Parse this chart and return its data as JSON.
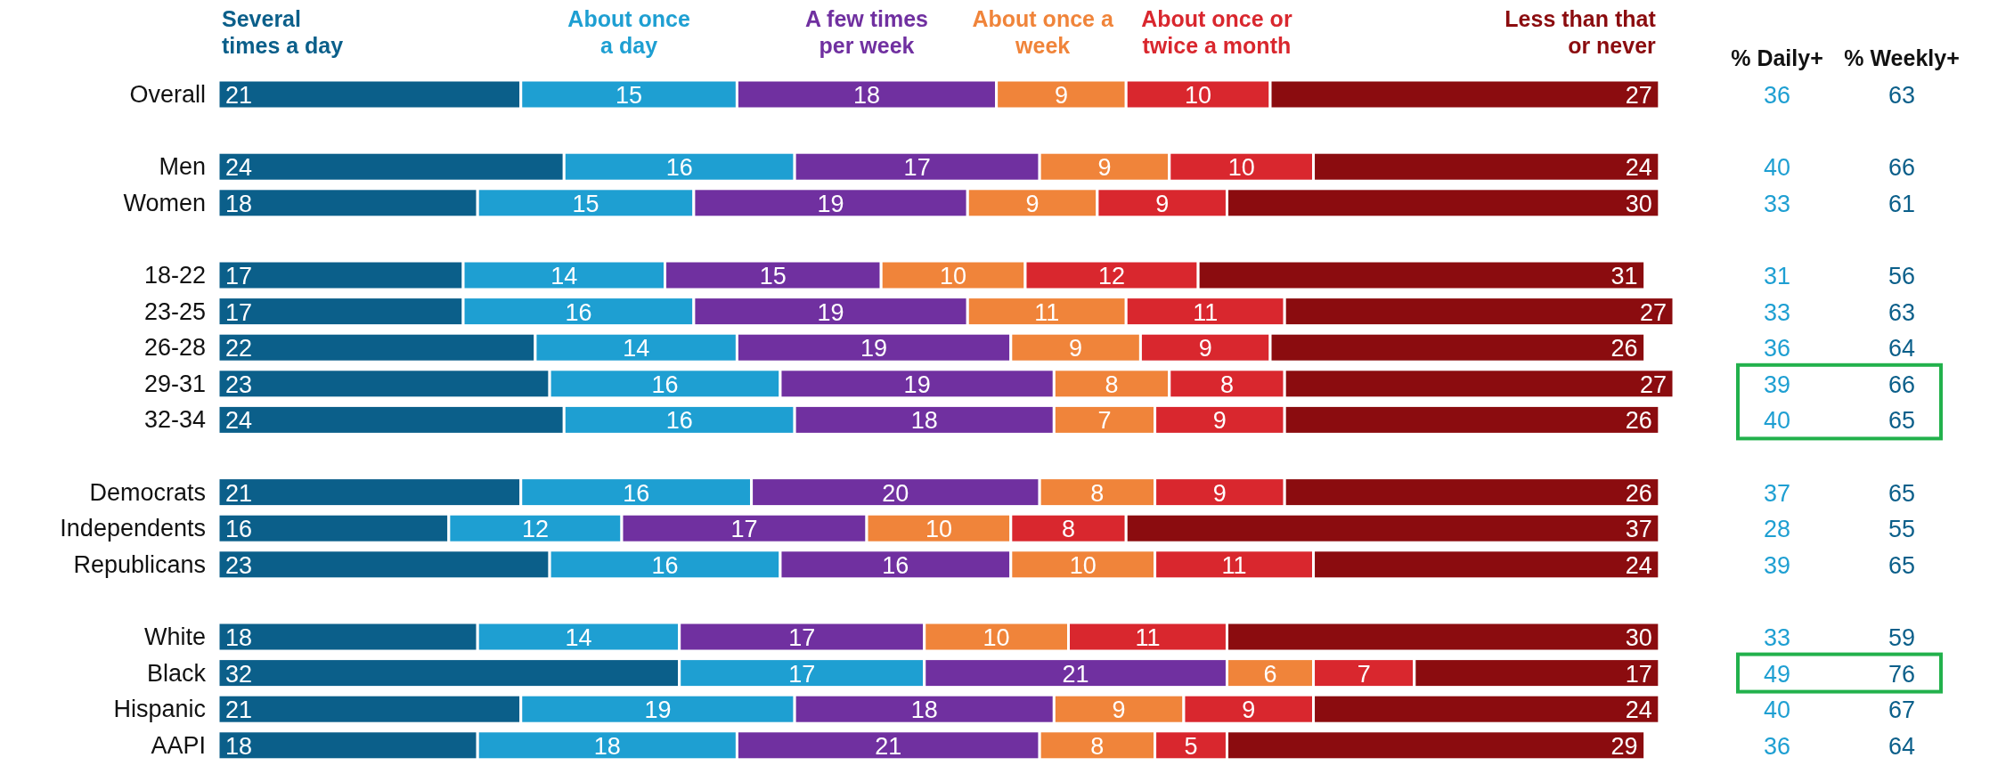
{
  "chart_data": [
    {
      "type": "bar",
      "orientation": "horizontal",
      "stacked": true,
      "data_labels": true,
      "legend": "top",
      "categories": [
        "Overall",
        null,
        "Men",
        "Women",
        null,
        "18-22",
        "23-25",
        "26-28",
        "29-31",
        "32-34",
        null,
        "Democrats",
        "Independents",
        "Republicans",
        null,
        "White",
        "Black",
        "Hispanic",
        "AAPI"
      ],
      "series": [
        {
          "name": "Several\ntimes a day",
          "color": "#0b5f8a",
          "values": [
            21,
            null,
            24,
            18,
            null,
            17,
            17,
            22,
            23,
            24,
            null,
            21,
            16,
            23,
            null,
            18,
            32,
            21,
            18
          ]
        },
        {
          "name": "About once\na day",
          "color": "#1e9fd2",
          "values": [
            15,
            null,
            16,
            15,
            null,
            14,
            16,
            14,
            16,
            16,
            null,
            16,
            12,
            16,
            null,
            14,
            17,
            19,
            18
          ]
        },
        {
          "name": "A few times\nper week",
          "color": "#7030a0",
          "values": [
            18,
            null,
            17,
            19,
            null,
            15,
            19,
            19,
            19,
            18,
            null,
            20,
            17,
            16,
            null,
            17,
            21,
            18,
            21
          ]
        },
        {
          "name": "About once a\nweek",
          "color": "#f0843a",
          "values": [
            9,
            null,
            9,
            9,
            null,
            10,
            11,
            9,
            8,
            7,
            null,
            8,
            10,
            10,
            null,
            10,
            6,
            9,
            8
          ]
        },
        {
          "name": "About once or\ntwice a month",
          "color": "#d9272e",
          "values": [
            10,
            null,
            10,
            9,
            null,
            12,
            11,
            9,
            8,
            9,
            null,
            9,
            8,
            11,
            null,
            11,
            7,
            9,
            5
          ]
        },
        {
          "name": "Less than that\nor never",
          "color": "#8b0c0f",
          "values": [
            27,
            null,
            24,
            30,
            null,
            31,
            27,
            26,
            27,
            26,
            null,
            26,
            37,
            24,
            null,
            30,
            17,
            24,
            29
          ]
        }
      ]
    },
    {
      "type": "heatmap",
      "data_labels": true,
      "tick_labels": "x",
      "categories": [
        "% Daily+",
        "% Weekly+"
      ],
      "colors": [
        "#1e9fd2",
        "#0b5f8a"
      ],
      "y_categories": [
        "Overall",
        "Men",
        "Women",
        "18-22",
        "23-25",
        "26-28",
        "29-31",
        "32-34",
        "Democrats",
        "Independents",
        "Republicans",
        "White",
        "Black",
        "Hispanic",
        "AAPI"
      ],
      "cells": [
        [
          36,
          63
        ],
        [
          40,
          66
        ],
        [
          33,
          61
        ],
        [
          31,
          56
        ],
        [
          33,
          63
        ],
        [
          36,
          64
        ],
        [
          39,
          66
        ],
        [
          40,
          65
        ],
        [
          37,
          65
        ],
        [
          28,
          55
        ],
        [
          39,
          65
        ],
        [
          33,
          59
        ],
        [
          49,
          76
        ],
        [
          40,
          67
        ],
        [
          36,
          64
        ]
      ]
    }
  ]
}
